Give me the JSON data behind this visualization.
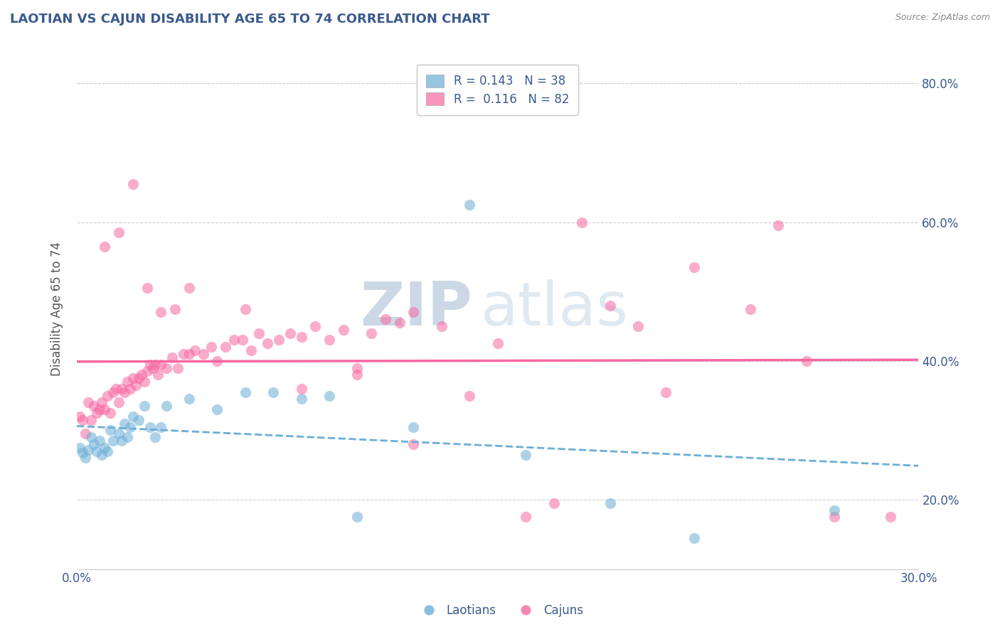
{
  "title": "LAOTIAN VS CAJUN DISABILITY AGE 65 TO 74 CORRELATION CHART",
  "source": "Source: ZipAtlas.com",
  "ylabel": "Disability Age 65 to 74",
  "xlim": [
    0.0,
    0.3
  ],
  "ylim": [
    0.1,
    0.85
  ],
  "laotian_color": "#6baed6",
  "cajun_color": "#f768a1",
  "laotian_R": 0.143,
  "laotian_N": 38,
  "cajun_R": 0.116,
  "cajun_N": 82,
  "laotian_x": [
    0.001,
    0.002,
    0.003,
    0.004,
    0.005,
    0.006,
    0.007,
    0.008,
    0.009,
    0.01,
    0.011,
    0.012,
    0.013,
    0.015,
    0.016,
    0.017,
    0.018,
    0.019,
    0.02,
    0.022,
    0.024,
    0.026,
    0.028,
    0.03,
    0.032,
    0.04,
    0.05,
    0.06,
    0.07,
    0.08,
    0.09,
    0.1,
    0.12,
    0.14,
    0.16,
    0.19,
    0.22,
    0.27
  ],
  "laotian_y": [
    0.275,
    0.268,
    0.26,
    0.272,
    0.29,
    0.28,
    0.27,
    0.285,
    0.265,
    0.275,
    0.27,
    0.3,
    0.285,
    0.295,
    0.285,
    0.31,
    0.29,
    0.305,
    0.32,
    0.315,
    0.335,
    0.305,
    0.29,
    0.305,
    0.335,
    0.345,
    0.33,
    0.355,
    0.355,
    0.345,
    0.35,
    0.175,
    0.305,
    0.625,
    0.265,
    0.195,
    0.145,
    0.185
  ],
  "cajun_x": [
    0.001,
    0.002,
    0.003,
    0.004,
    0.005,
    0.006,
    0.007,
    0.008,
    0.009,
    0.01,
    0.011,
    0.012,
    0.013,
    0.014,
    0.015,
    0.016,
    0.017,
    0.018,
    0.019,
    0.02,
    0.021,
    0.022,
    0.023,
    0.024,
    0.025,
    0.026,
    0.027,
    0.028,
    0.029,
    0.03,
    0.032,
    0.034,
    0.036,
    0.038,
    0.04,
    0.042,
    0.045,
    0.048,
    0.05,
    0.053,
    0.056,
    0.059,
    0.062,
    0.065,
    0.068,
    0.072,
    0.076,
    0.08,
    0.085,
    0.09,
    0.095,
    0.1,
    0.105,
    0.11,
    0.115,
    0.12,
    0.13,
    0.14,
    0.15,
    0.16,
    0.17,
    0.18,
    0.19,
    0.2,
    0.21,
    0.22,
    0.24,
    0.26,
    0.01,
    0.015,
    0.02,
    0.025,
    0.03,
    0.035,
    0.04,
    0.06,
    0.08,
    0.1,
    0.12,
    0.25,
    0.27,
    0.29
  ],
  "cajun_y": [
    0.32,
    0.315,
    0.295,
    0.34,
    0.315,
    0.335,
    0.325,
    0.33,
    0.34,
    0.33,
    0.35,
    0.325,
    0.355,
    0.36,
    0.34,
    0.36,
    0.355,
    0.37,
    0.36,
    0.375,
    0.365,
    0.375,
    0.38,
    0.37,
    0.385,
    0.395,
    0.39,
    0.395,
    0.38,
    0.395,
    0.39,
    0.405,
    0.39,
    0.41,
    0.41,
    0.415,
    0.41,
    0.42,
    0.4,
    0.42,
    0.43,
    0.43,
    0.415,
    0.44,
    0.425,
    0.43,
    0.44,
    0.435,
    0.45,
    0.43,
    0.445,
    0.38,
    0.44,
    0.46,
    0.455,
    0.47,
    0.45,
    0.35,
    0.425,
    0.175,
    0.195,
    0.6,
    0.48,
    0.45,
    0.355,
    0.535,
    0.475,
    0.4,
    0.565,
    0.585,
    0.655,
    0.505,
    0.47,
    0.475,
    0.505,
    0.475,
    0.36,
    0.39,
    0.28,
    0.595,
    0.175,
    0.175
  ],
  "watermark_zip": "ZIP",
  "watermark_atlas": "atlas",
  "background_color": "#ffffff",
  "grid_color": "#cccccc",
  "title_color": "#3a5a8c",
  "axis_label_color": "#555555",
  "tick_color": "#3a5a8c",
  "legend_label_color": "#3a5a8c",
  "bottom_legend": [
    "Laotians",
    "Cajuns"
  ]
}
